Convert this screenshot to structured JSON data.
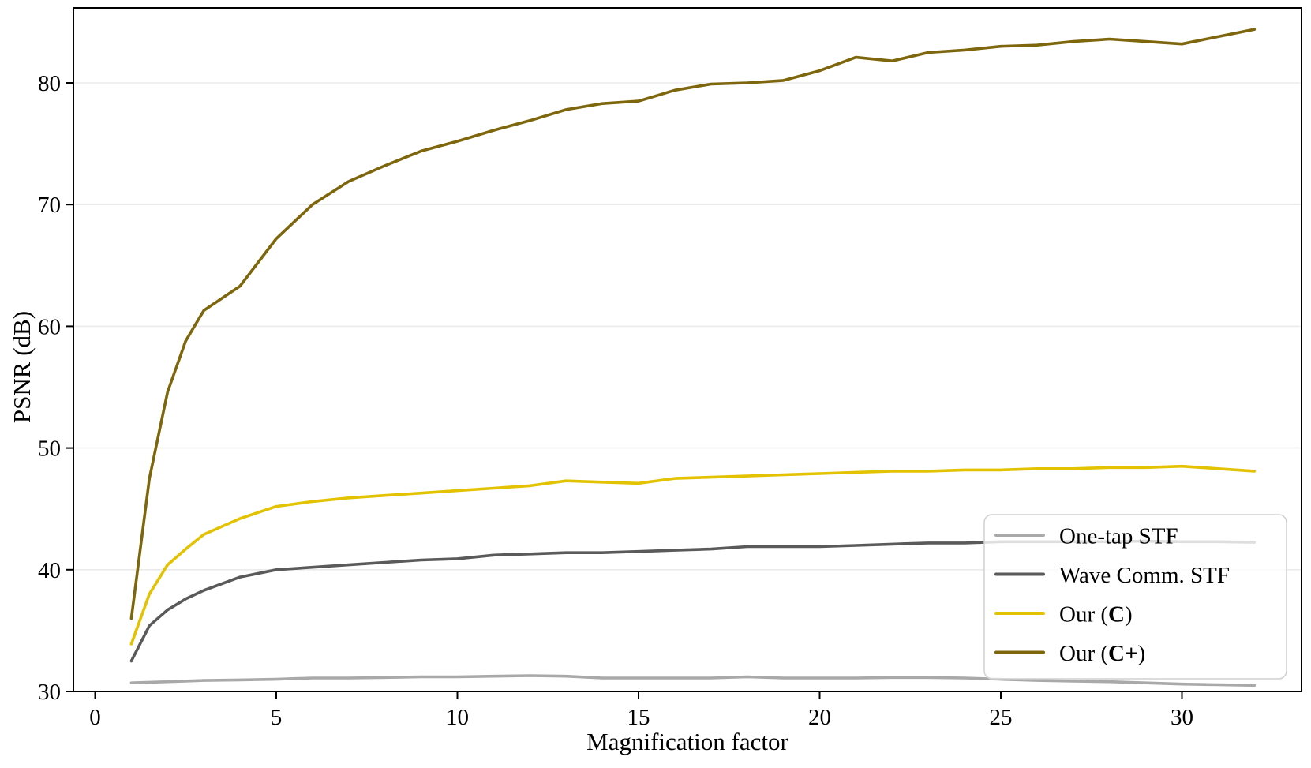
{
  "chart_data": {
    "type": "line",
    "title": "",
    "xlabel": "Magnification factor",
    "ylabel": "PSNR (dB)",
    "xlim": [
      -0.6,
      33.3
    ],
    "ylim": [
      30,
      86.2
    ],
    "xticks": [
      0,
      5,
      10,
      15,
      20,
      25,
      30
    ],
    "yticks": [
      30,
      40,
      50,
      60,
      70,
      80
    ],
    "grid": "horizontal",
    "legend_position": "lower right",
    "x": [
      1,
      1.5,
      2,
      2.5,
      3,
      4,
      5,
      6,
      7,
      8,
      9,
      10,
      11,
      12,
      13,
      14,
      15,
      16,
      17,
      18,
      19,
      20,
      21,
      22,
      23,
      24,
      25,
      26,
      27,
      28,
      29,
      30,
      31,
      32
    ],
    "series": [
      {
        "name": "One-tap STF",
        "color": "#a9a9a9",
        "legend": {
          "pre": "One-tap STF",
          "bold": "",
          "post": ""
        },
        "values": [
          30.7,
          30.75,
          30.8,
          30.85,
          30.9,
          30.95,
          31.0,
          31.1,
          31.1,
          31.15,
          31.2,
          31.2,
          31.25,
          31.3,
          31.25,
          31.1,
          31.1,
          31.1,
          31.1,
          31.2,
          31.1,
          31.1,
          31.1,
          31.15,
          31.15,
          31.1,
          31.0,
          30.9,
          30.85,
          30.8,
          30.7,
          30.6,
          30.55,
          30.5
        ]
      },
      {
        "name": "Wave Comm. STF",
        "color": "#5a5a5a",
        "legend": {
          "pre": "Wave Comm. STF",
          "bold": "",
          "post": ""
        },
        "values": [
          32.5,
          35.4,
          36.7,
          37.6,
          38.3,
          39.4,
          40.0,
          40.2,
          40.4,
          40.6,
          40.8,
          40.9,
          41.2,
          41.3,
          41.4,
          41.4,
          41.5,
          41.6,
          41.7,
          41.9,
          41.9,
          41.9,
          42.0,
          42.1,
          42.2,
          42.2,
          42.3,
          42.3,
          42.3,
          42.3,
          42.35,
          42.3,
          42.3,
          42.25
        ]
      },
      {
        "name": "Our (C)",
        "color": "#e3c202",
        "legend": {
          "pre": "Our (",
          "bold": "C",
          "post": ")"
        },
        "values": [
          33.9,
          38.0,
          40.4,
          41.7,
          42.9,
          44.2,
          45.2,
          45.6,
          45.9,
          46.1,
          46.3,
          46.5,
          46.7,
          46.9,
          47.3,
          47.2,
          47.1,
          47.5,
          47.6,
          47.7,
          47.8,
          47.9,
          48.0,
          48.1,
          48.1,
          48.2,
          48.2,
          48.3,
          48.3,
          48.4,
          48.4,
          48.5,
          48.3,
          48.1
        ]
      },
      {
        "name": "Our (C+)",
        "color": "#7d660b",
        "legend": {
          "pre": "Our (",
          "bold": "C+",
          "post": ")"
        },
        "values": [
          36.0,
          47.5,
          54.6,
          58.8,
          61.3,
          63.3,
          67.2,
          70.0,
          71.9,
          73.2,
          74.4,
          75.2,
          76.1,
          76.9,
          77.8,
          78.3,
          78.5,
          79.4,
          79.9,
          80.0,
          80.2,
          81.0,
          82.1,
          81.8,
          82.5,
          82.7,
          83.0,
          83.1,
          83.4,
          83.6,
          83.4,
          83.2,
          83.8,
          84.4
        ]
      }
    ],
    "style": {
      "background_color": "#ffffff",
      "grid_color": "#ebebeb",
      "axis_color": "#000000",
      "legend_border_color": "#d0d0d0",
      "legend_fill_color": "#ffffff"
    }
  }
}
